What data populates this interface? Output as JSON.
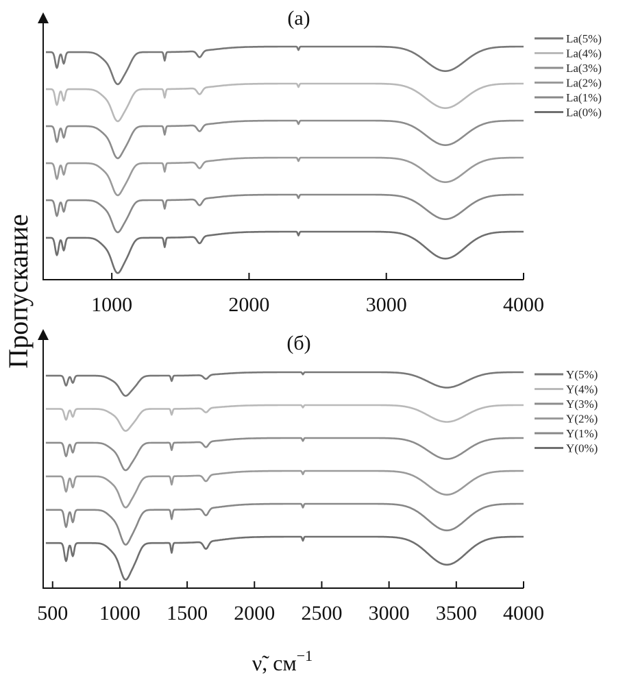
{
  "chart_data": [
    {
      "type": "line",
      "title": "(a)",
      "xlabel": "",
      "ylabel": "Пропускание",
      "xlim": [
        500,
        4000
      ],
      "x_ticks": [
        1000,
        2000,
        3000,
        4000
      ],
      "x_tick_labels": [
        "1000",
        "2000",
        "3000",
        "4000"
      ],
      "legend": "top-right",
      "series": [
        {
          "name": "La(5%)",
          "color": "#777777",
          "offset": 5,
          "depth": 1.0
        },
        {
          "name": "La(4%)",
          "color": "#b9b9b9",
          "offset": 4,
          "depth": 1.0
        },
        {
          "name": "La(3%)",
          "color": "#8c8c8c",
          "offset": 3,
          "depth": 1.0
        },
        {
          "name": "La(2%)",
          "color": "#9a9a9a",
          "offset": 2,
          "depth": 1.0
        },
        {
          "name": "La(1%)",
          "color": "#888888",
          "offset": 1,
          "depth": 1.0
        },
        {
          "name": "La(0%)",
          "color": "#6f6f6f",
          "offset": 0,
          "depth": 1.1
        }
      ]
    },
    {
      "type": "line",
      "title": "(б)",
      "xlabel": "ν̃, см⁻¹",
      "ylabel": "Пропускание",
      "xlim": [
        430,
        4000
      ],
      "x_ticks": [
        500,
        1000,
        1500,
        2000,
        2500,
        3000,
        3500,
        4000
      ],
      "x_tick_labels": [
        "500",
        "1000",
        "1500",
        "2000",
        "2500",
        "3000",
        "3500",
        "4000"
      ],
      "legend": "top-right",
      "series": [
        {
          "name": "Y(5%)",
          "color": "#777777",
          "offset": 5,
          "depth": 0.55
        },
        {
          "name": "Y(4%)",
          "color": "#b9b9b9",
          "offset": 4,
          "depth": 0.6
        },
        {
          "name": "Y(3%)",
          "color": "#8c8c8c",
          "offset": 3,
          "depth": 0.75
        },
        {
          "name": "Y(2%)",
          "color": "#9a9a9a",
          "offset": 2,
          "depth": 0.85
        },
        {
          "name": "Y(1%)",
          "color": "#888888",
          "offset": 1,
          "depth": 0.95
        },
        {
          "name": "Y(0%)",
          "color": "#6f6f6f",
          "offset": 0,
          "depth": 1.0
        }
      ]
    }
  ],
  "figure": {
    "ylabel": "Пропускание",
    "xlabel_symbol": "ν̃",
    "xlabel_unit": ", см",
    "xlabel_exp": "−1"
  }
}
